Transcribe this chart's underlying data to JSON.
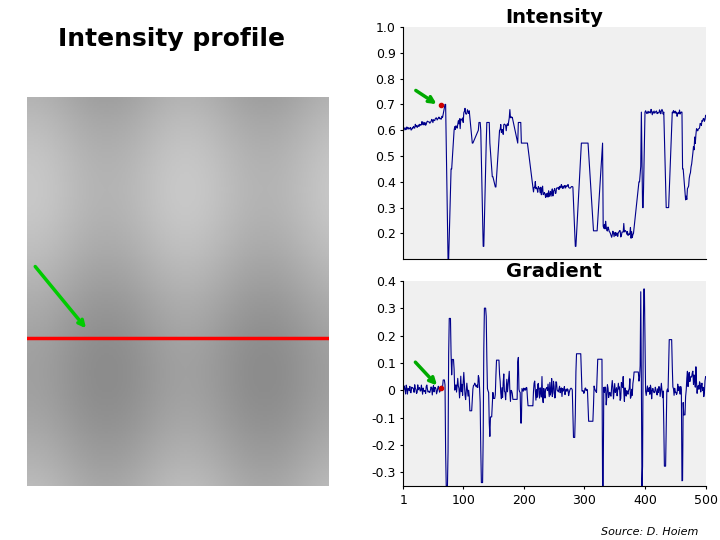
{
  "title_left": "Intensity profile",
  "title_intensity": "Intensity",
  "title_gradient": "Gradient",
  "source_text": "Source: D. Hoiem",
  "intensity_ylim": [
    0.1,
    1.0
  ],
  "intensity_yticks": [
    0.2,
    0.3,
    0.4,
    0.5,
    0.6,
    0.7,
    0.8,
    0.9,
    1.0
  ],
  "intensity_ytick_labels": [
    "0.2",
    "0.3",
    "0.4",
    "0.5",
    "0.6",
    "0.7",
    "0.8",
    "0.9",
    "1.0"
  ],
  "gradient_ylim": [
    -0.35,
    0.4
  ],
  "gradient_yticks": [
    -0.3,
    -0.2,
    -0.1,
    0.0,
    0.1,
    0.2,
    0.3,
    0.4
  ],
  "gradient_ytick_labels": [
    "-0.3",
    "-0.2",
    "-0.1",
    "0",
    "0.1",
    "0.2",
    "0.3",
    "0.4"
  ],
  "xlim": [
    1,
    500
  ],
  "xticks": [
    1,
    100,
    200,
    300,
    400,
    500
  ],
  "xtick_labels": [
    "1",
    "100",
    "200",
    "300",
    "400",
    "500"
  ],
  "line_color": "#00008B",
  "arrow_color": "#00AA00",
  "dot_color": "#CC0000",
  "plot_bg_color": "#F0F0F0",
  "title_fontsize": 18,
  "tick_fontsize": 9
}
